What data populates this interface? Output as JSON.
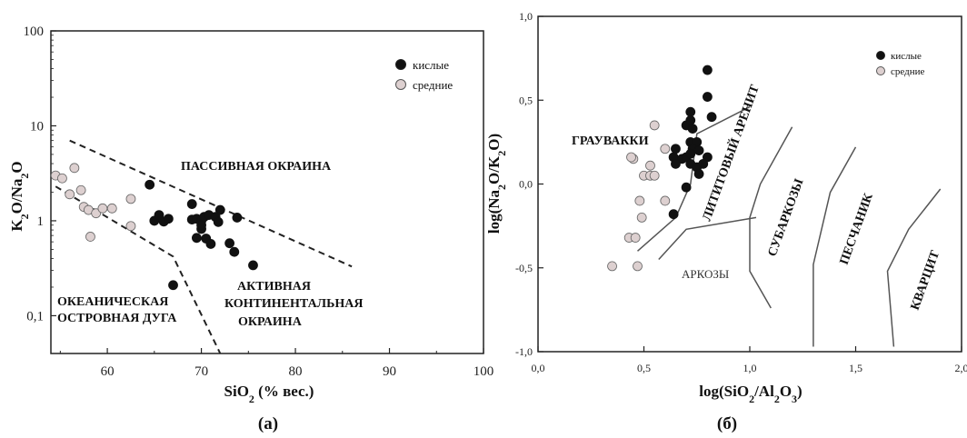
{
  "chart_data": [
    {
      "type": "scatter",
      "panel_label": "(а)",
      "xlabel": "SiO₂ (% вес.)",
      "ylabel": "K₂O/Na₂O",
      "xlim": [
        54,
        100
      ],
      "ylim": [
        0.04,
        100
      ],
      "y_scale": "log",
      "x_ticks": [
        "60",
        "70",
        "80",
        "90",
        "100"
      ],
      "y_ticks": [
        "0,1",
        "1",
        "10",
        "100"
      ],
      "legend_position": "top-right",
      "fields": [
        "ПАССИВНАЯ ОКРАИНА",
        "АКТИВНАЯ",
        "КОНТИНЕНТАЛЬНАЯ",
        "ОКРАИНА",
        "ОКЕАНИЧЕСКАЯ",
        "ОСТРОВНАЯ ДУГА"
      ],
      "boundaries": [
        {
          "points": [
            [
              56,
              7.0
            ],
            [
              86,
              0.33
            ]
          ]
        },
        {
          "points": [
            [
              54.5,
              2.3
            ],
            [
              67,
              0.42
            ],
            [
              72,
              0.04
            ]
          ]
        }
      ],
      "series": [
        {
          "name": "кислые",
          "color": "#111111",
          "points": [
            [
              64.5,
              2.4
            ],
            [
              65,
              1.0
            ],
            [
              65.5,
              1.15
            ],
            [
              66,
              0.98
            ],
            [
              66.5,
              1.05
            ],
            [
              67,
              0.21
            ],
            [
              69,
              1.5
            ],
            [
              69,
              1.03
            ],
            [
              69.5,
              1.05
            ],
            [
              69.5,
              0.66
            ],
            [
              70,
              1.0
            ],
            [
              70,
              0.82
            ],
            [
              70,
              0.9
            ],
            [
              70.3,
              1.1
            ],
            [
              70.5,
              0.65
            ],
            [
              70.8,
              1.15
            ],
            [
              71,
              0.57
            ],
            [
              71.5,
              1.1
            ],
            [
              71.8,
              0.97
            ],
            [
              72,
              1.3
            ],
            [
              73,
              0.58
            ],
            [
              73.5,
              0.47
            ],
            [
              73.8,
              1.08
            ],
            [
              75.5,
              0.34
            ]
          ]
        },
        {
          "name": "средние",
          "color": "#ddd0d0",
          "points": [
            [
              54.5,
              3.0
            ],
            [
              55.2,
              2.8
            ],
            [
              56,
              1.9
            ],
            [
              56.5,
              3.6
            ],
            [
              57.2,
              2.1
            ],
            [
              57.5,
              1.4
            ],
            [
              58,
              1.3
            ],
            [
              58.2,
              0.68
            ],
            [
              58.8,
              1.2
            ],
            [
              59.5,
              1.35
            ],
            [
              60.5,
              1.35
            ],
            [
              62.5,
              0.88
            ],
            [
              62.5,
              1.7
            ]
          ]
        }
      ]
    },
    {
      "type": "scatter",
      "panel_label": "(б)",
      "xlabel": "log(SiO₂/Al₂O₃)",
      "ylabel": "log(Na₂O/K₂O)",
      "xlim": [
        0,
        2
      ],
      "ylim": [
        -1,
        1
      ],
      "x_ticks": [
        "0,0",
        "0,5",
        "1,0",
        "1,5",
        "2,0"
      ],
      "y_ticks": [
        "-1,0",
        "-0,5",
        "0,0",
        "0,5",
        "1,0"
      ],
      "legend_position": "top-right",
      "fields": [
        "ГРАУВАККИ",
        "ЛИТИТОВЫЙ АРЕНИТ",
        "АРКОЗЫ",
        "СУБАРКОЗЫ",
        "ПЕСЧАНИК",
        "КВАРЦИТ"
      ],
      "boundaries": [
        {
          "points": [
            [
              0.47,
              -0.4
            ],
            [
              0.65,
              -0.2
            ],
            [
              0.72,
              0.0
            ],
            [
              0.75,
              0.3
            ],
            [
              1.0,
              0.46
            ]
          ]
        },
        {
          "points": [
            [
              0.57,
              -0.45
            ],
            [
              0.7,
              -0.27
            ],
            [
              1.03,
              -0.2
            ]
          ]
        },
        {
          "points": [
            [
              1.2,
              0.34
            ],
            [
              1.05,
              0.0
            ],
            [
              1.0,
              -0.2
            ],
            [
              1.0,
              -0.52
            ],
            [
              1.1,
              -0.74
            ]
          ]
        },
        {
          "points": [
            [
              1.5,
              0.22
            ],
            [
              1.38,
              -0.05
            ],
            [
              1.3,
              -0.48
            ],
            [
              1.3,
              -0.97
            ]
          ]
        },
        {
          "points": [
            [
              1.9,
              -0.03
            ],
            [
              1.75,
              -0.27
            ],
            [
              1.65,
              -0.52
            ],
            [
              1.68,
              -0.97
            ]
          ]
        }
      ],
      "series": [
        {
          "name": "кислые",
          "color": "#111111",
          "points": [
            [
              0.8,
              0.68
            ],
            [
              0.8,
              0.52
            ],
            [
              0.82,
              0.4
            ],
            [
              0.7,
              0.35
            ],
            [
              0.72,
              0.43
            ],
            [
              0.72,
              0.38
            ],
            [
              0.73,
              0.33
            ],
            [
              0.65,
              0.21
            ],
            [
              0.72,
              0.25
            ],
            [
              0.75,
              0.25
            ],
            [
              0.73,
              0.21
            ],
            [
              0.64,
              0.16
            ],
            [
              0.68,
              0.15
            ],
            [
              0.7,
              0.16
            ],
            [
              0.72,
              0.18
            ],
            [
              0.76,
              0.2
            ],
            [
              0.8,
              0.16
            ],
            [
              0.65,
              0.12
            ],
            [
              0.72,
              0.12
            ],
            [
              0.75,
              0.1
            ],
            [
              0.78,
              0.12
            ],
            [
              0.76,
              0.06
            ],
            [
              0.7,
              -0.02
            ],
            [
              0.64,
              -0.18
            ]
          ]
        },
        {
          "name": "средние",
          "color": "#ddd0d0",
          "points": [
            [
              0.55,
              0.35
            ],
            [
              0.45,
              0.15
            ],
            [
              0.44,
              0.16
            ],
            [
              0.6,
              0.21
            ],
            [
              0.5,
              0.05
            ],
            [
              0.53,
              0.05
            ],
            [
              0.55,
              0.05
            ],
            [
              0.53,
              0.11
            ],
            [
              0.48,
              -0.1
            ],
            [
              0.6,
              -0.1
            ],
            [
              0.49,
              -0.2
            ],
            [
              0.43,
              -0.32
            ],
            [
              0.46,
              -0.32
            ],
            [
              0.35,
              -0.49
            ],
            [
              0.47,
              -0.49
            ]
          ]
        }
      ]
    }
  ]
}
